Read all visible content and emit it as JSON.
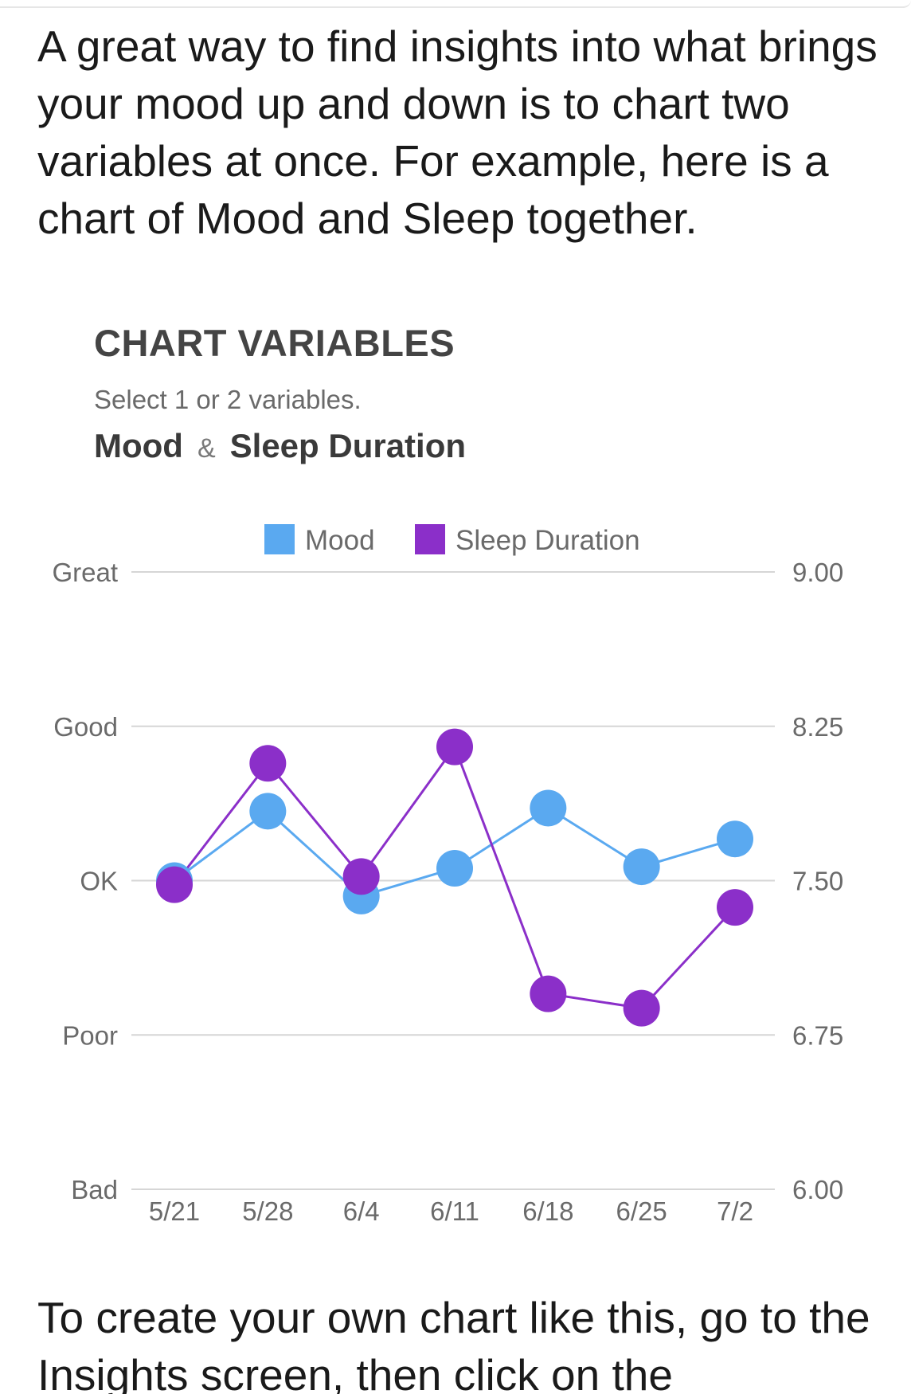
{
  "intro_text": "A great way to find insights into what brings your mood up and down is to chart two variables at once. For example, here is a chart of Mood and Sleep together.",
  "chart_section": {
    "heading": "CHART VARIABLES",
    "instructions": "Select 1 or 2 variables.",
    "selected": {
      "first": "Mood",
      "separator": "&",
      "second": "Sleep Duration"
    }
  },
  "outro_text": "To create your own chart like this, go to the Insights screen, then click on the",
  "colors": {
    "mood": "#5aa9f0",
    "sleep": "#8b2fc9",
    "grid": "#d6d6d6",
    "axis_text": "#6a6a6a"
  },
  "chart_data": {
    "type": "line",
    "categories": [
      "5/21",
      "5/28",
      "6/4",
      "6/11",
      "6/18",
      "6/25",
      "7/2"
    ],
    "legend": [
      "Mood",
      "Sleep Duration"
    ],
    "legend_position": "top",
    "grid": true,
    "left_axis": {
      "levels": [
        "Bad",
        "Poor",
        "OK",
        "Good",
        "Great"
      ],
      "range": [
        0,
        4
      ]
    },
    "right_axis": {
      "ticks": [
        "6.00",
        "6.75",
        "7.50",
        "8.25",
        "9.00"
      ],
      "range": [
        6.0,
        9.0
      ]
    },
    "series": [
      {
        "name": "Mood",
        "axis": "left",
        "color": "#5aa9f0",
        "values": [
          2.0,
          2.45,
          1.9,
          2.08,
          2.47,
          2.09,
          2.27
        ]
      },
      {
        "name": "Sleep Duration",
        "axis": "right",
        "color": "#8b2fc9",
        "values": [
          7.48,
          8.07,
          7.52,
          8.15,
          6.95,
          6.88,
          7.37
        ]
      }
    ]
  }
}
